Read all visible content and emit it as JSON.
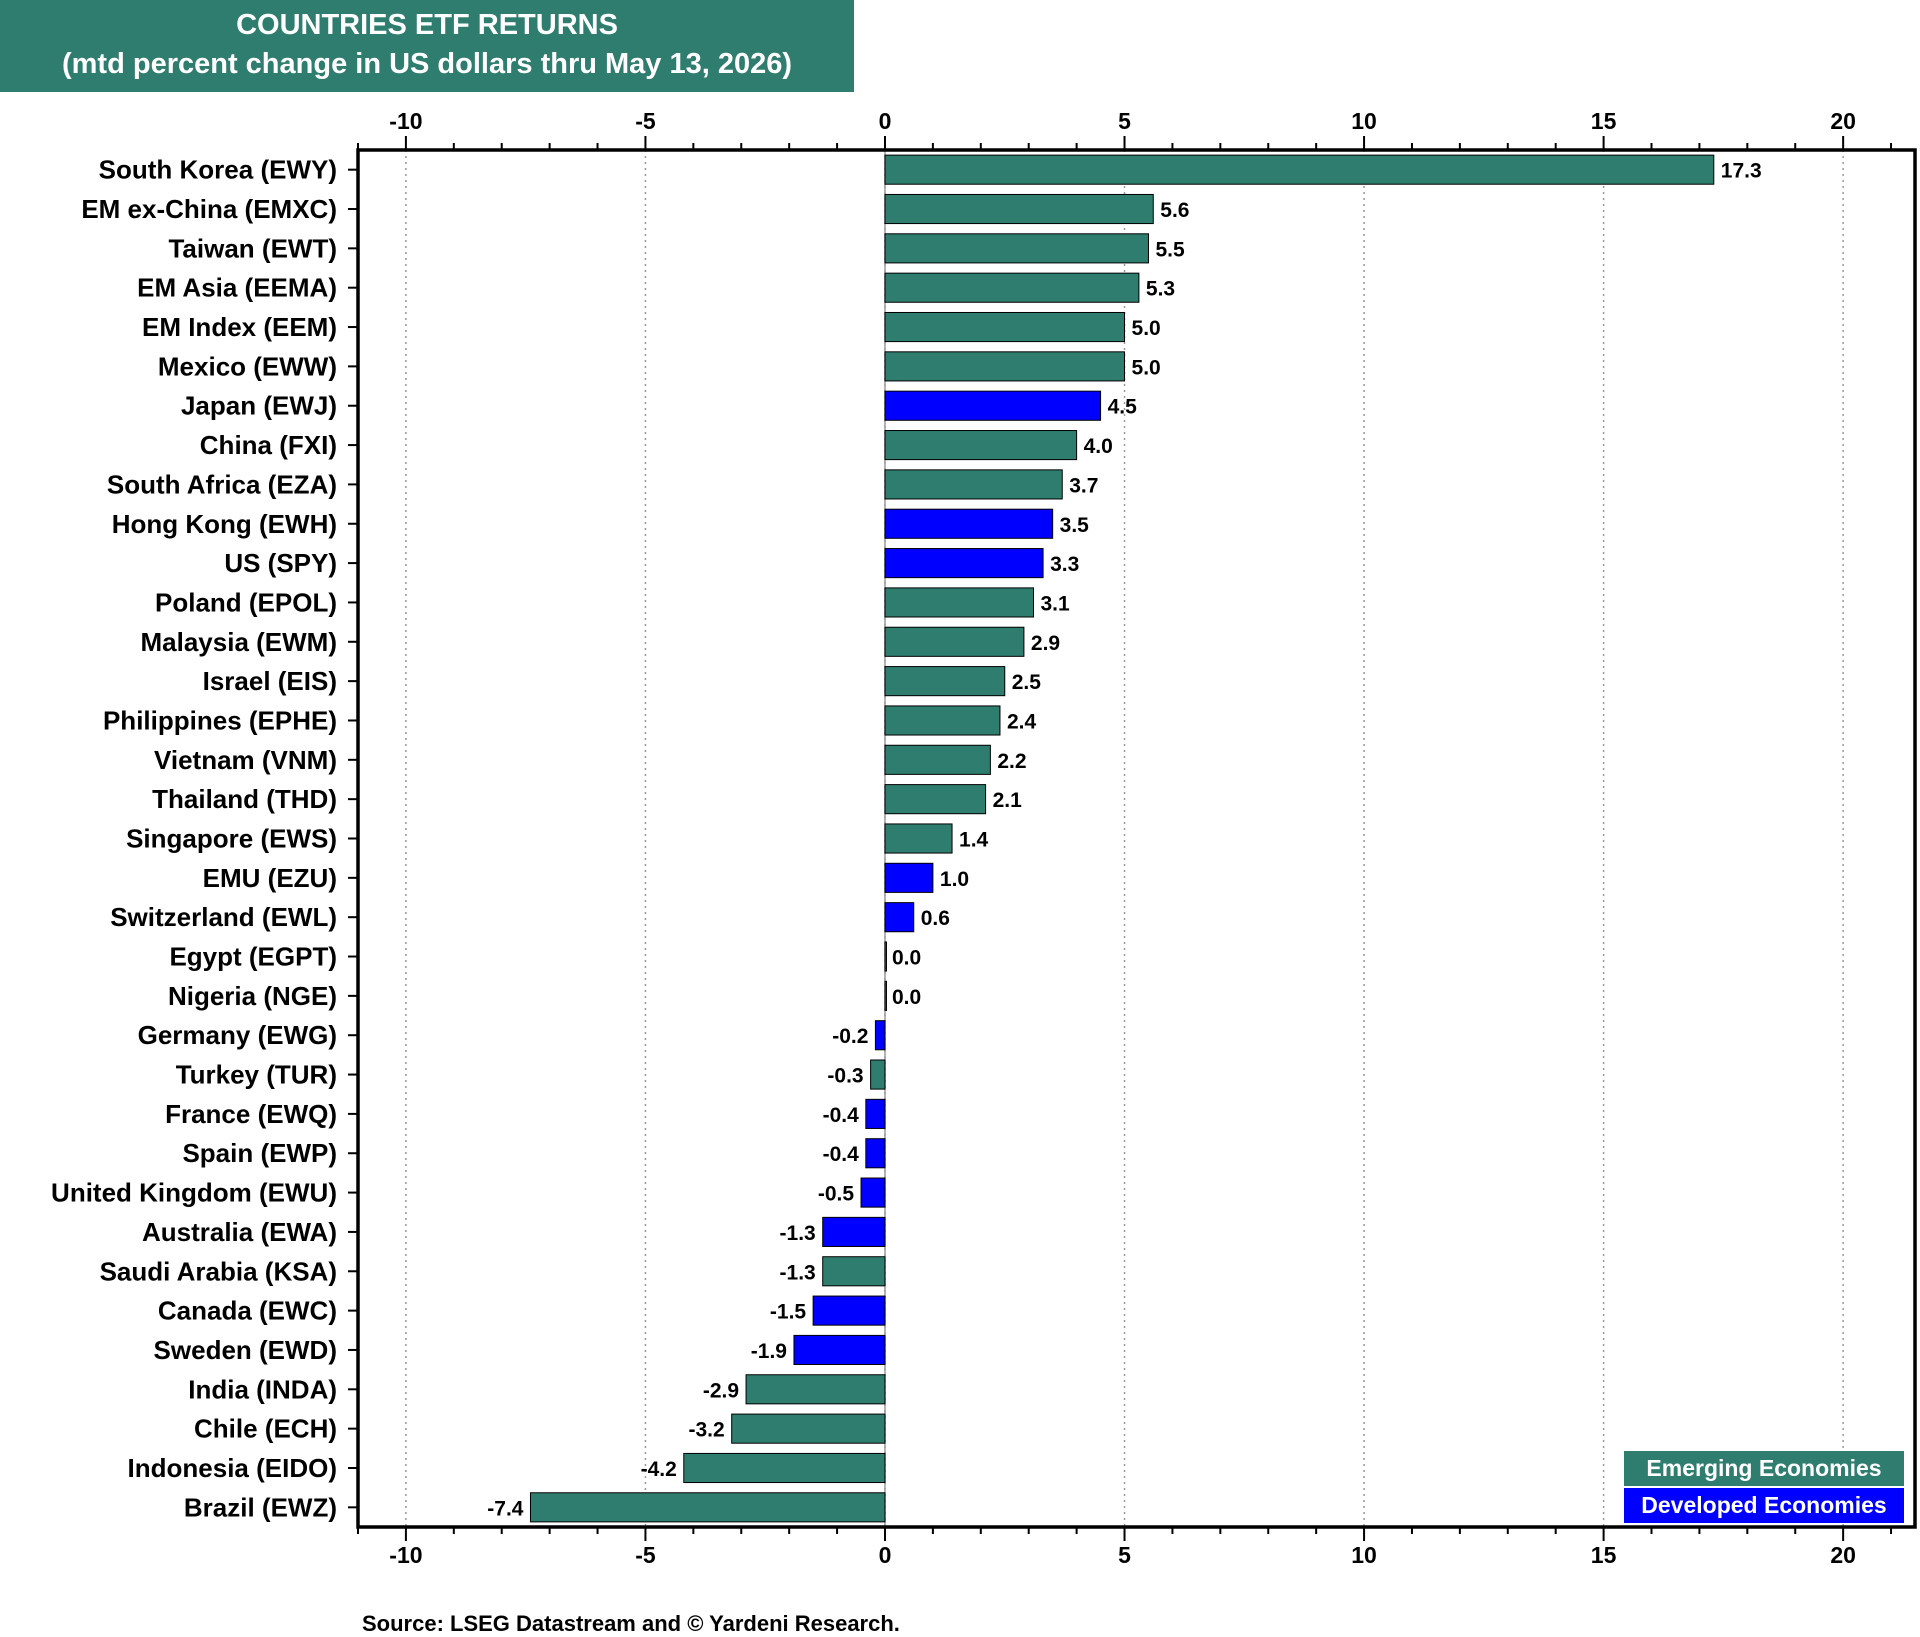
{
  "header": {
    "title": "COUNTRIES ETF RETURNS",
    "subtitle": "(mtd percent change in US dollars thru May 13, 2026)"
  },
  "source": "Source: LSEG Datastream and © Yardeni Research.",
  "legend": {
    "emerging_label": "Emerging Economies",
    "developed_label": "Developed Economies"
  },
  "colors": {
    "emerging": "#2e7d6e",
    "developed": "#0000ff"
  },
  "chart_data": {
    "type": "bar",
    "orientation": "horizontal",
    "title": "COUNTRIES ETF RETURNS",
    "subtitle": "(mtd percent change in US dollars thru May 13, 2026)",
    "xlim": [
      -11,
      21.5
    ],
    "ticks": [
      -10,
      -5,
      0,
      5,
      10,
      15,
      20
    ],
    "grid": "vertical dotted",
    "legend_position": "bottom-right",
    "categories": [
      "South Korea (EWY)",
      "EM ex-China (EMXC)",
      "Taiwan (EWT)",
      "EM Asia (EEMA)",
      "EM Index (EEM)",
      "Mexico (EWW)",
      "Japan (EWJ)",
      "China (FXI)",
      "South Africa (EZA)",
      "Hong Kong (EWH)",
      "US (SPY)",
      "Poland (EPOL)",
      "Malaysia (EWM)",
      "Israel (EIS)",
      "Philippines (EPHE)",
      "Vietnam (VNM)",
      "Thailand (THD)",
      "Singapore (EWS)",
      "EMU (EZU)",
      "Switzerland (EWL)",
      "Egypt (EGPT)",
      "Nigeria (NGE)",
      "Germany (EWG)",
      "Turkey (TUR)",
      "France (EWQ)",
      "Spain (EWP)",
      "United Kingdom (EWU)",
      "Australia (EWA)",
      "Saudi Arabia (KSA)",
      "Canada (EWC)",
      "Sweden (EWD)",
      "India (INDA)",
      "Chile (ECH)",
      "Indonesia (EIDO)",
      "Brazil (EWZ)"
    ],
    "values": [
      17.3,
      5.6,
      5.5,
      5.3,
      5.0,
      5.0,
      4.5,
      4.0,
      3.7,
      3.5,
      3.3,
      3.1,
      2.9,
      2.5,
      2.4,
      2.2,
      2.1,
      1.4,
      1.0,
      0.6,
      0.0,
      0.0,
      -0.2,
      -0.3,
      -0.4,
      -0.4,
      -0.5,
      -1.3,
      -1.3,
      -1.5,
      -1.9,
      -2.9,
      -3.2,
      -4.2,
      -7.4
    ],
    "labels": [
      "17.3",
      "5.6",
      "5.5",
      "5.3",
      "5.0",
      "5.0",
      "4.5",
      "4.0",
      "3.7",
      "3.5",
      "3.3",
      "3.1",
      "2.9",
      "2.5",
      "2.4",
      "2.2",
      "2.1",
      "1.4",
      "1.0",
      "0.6",
      "0.0",
      "0.0",
      "-0.2",
      "-0.3",
      "-0.4",
      "-0.4",
      "-0.5",
      "-1.3",
      "-1.3",
      "-1.5",
      "-1.9",
      "-2.9",
      "-3.2",
      "-4.2",
      "-7.4"
    ],
    "groups": [
      "emerging",
      "emerging",
      "emerging",
      "emerging",
      "emerging",
      "emerging",
      "developed",
      "emerging",
      "emerging",
      "developed",
      "developed",
      "emerging",
      "emerging",
      "emerging",
      "emerging",
      "emerging",
      "emerging",
      "emerging",
      "developed",
      "developed",
      "emerging",
      "emerging",
      "developed",
      "emerging",
      "developed",
      "developed",
      "developed",
      "developed",
      "emerging",
      "developed",
      "developed",
      "emerging",
      "emerging",
      "emerging",
      "emerging"
    ]
  }
}
